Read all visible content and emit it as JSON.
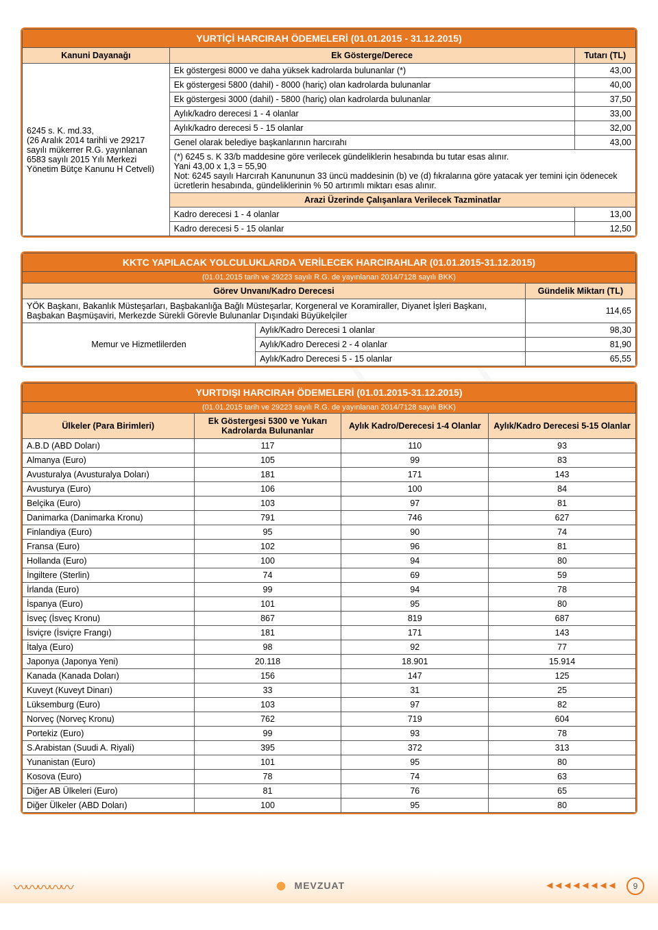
{
  "colors": {
    "accent": "#e87722",
    "header_bg": "#fbd9b5",
    "border": "#555555",
    "text": "#000000",
    "white": "#ffffff"
  },
  "watermark": "VİZYON YAYINLARI",
  "table1": {
    "title": "YURTİÇİ HARCIRAH ÖDEMELERİ (01.01.2015 - 31.12.2015)",
    "col_basis": "Kanuni Dayanağı",
    "col_desc": "Ek Gösterge/Derece",
    "col_amount": "Tutarı (TL)",
    "basis_text": "6245 s. K. md.33,\n(26 Aralık 2014 tarihli ve 29217 sayılı mükerrer R.G. yayınlanan 6583 sayılı 2015 Yılı Merkezi Yönetim Bütçe Kanunu H Cetveli)",
    "rows": [
      {
        "d": "Ek göstergesi 8000 ve daha yüksek  kadrolarda bulunanlar (*)",
        "a": "43,00"
      },
      {
        "d": "Ek göstergesi 5800 (dahil) - 8000 (hariç) olan kadrolarda bulunanlar",
        "a": "40,00"
      },
      {
        "d": "Ek göstergesi 3000 (dahil) - 5800 (hariç) olan kadrolarda bulunanlar",
        "a": "37,50"
      },
      {
        "d": "Aylık/kadro derecesi 1 - 4 olanlar",
        "a": "33,00"
      },
      {
        "d": "Aylık/kadro derecesi 5 - 15 olanlar",
        "a": "32,00"
      },
      {
        "d": "Genel olarak belediye başkanlarının harcırahı",
        "a": "43,00"
      }
    ],
    "note": "(*) 6245 s. K 33/b maddesine göre verilecek gündeliklerin hesabında bu tutar esas alınır.\nYani 43,00 x 1,3 = 55,90\nNot: 6245 sayılı Harcırah Kanununun 33 üncü maddesinin (b) ve (d) fıkralarına göre yatacak yer temini için ödenecek ücretlerin hesabında, gündeliklerinin % 50 artırımlı miktarı esas alınır.",
    "sect": "Arazi Üzerinde Çalışanlara Verilecek Tazminatlar",
    "rows2": [
      {
        "d": "Kadro derecesi 1 - 4 olanlar",
        "a": "13,00"
      },
      {
        "d": "Kadro derecesi 5 - 15 olanlar",
        "a": "12,50"
      }
    ]
  },
  "table2": {
    "title": "KKTC YAPILACAK YOLCULUKLARDA VERİLECEK HARCIRAHLAR  (01.01.2015-31.12.2015)",
    "subtitle": "(01.01.2015 tarih ve 29223 sayılı R.G. de yayınlanan 2014/7128 sayılı BKK)",
    "col1": "Görev Unvanı/Kadro Derecesi",
    "col2": "Gündelik Miktarı (TL)",
    "row1_desc": "YÖK Başkanı, Bakanlık Müsteşarları, Başbakanlığa Bağlı Müsteşarlar, Korgeneral ve Koramiraller, Diyanet İşleri Başkanı, Başbakan Başmüşaviri, Merkezde Sürekli Görevle Bulunanlar Dışındaki Büyükelçiler",
    "row1_amt": "114,65",
    "group_label": "Memur ve Hizmetlilerden",
    "sub_rows": [
      {
        "d": "Aylık/Kadro Derecesi 1 olanlar",
        "a": "98,30"
      },
      {
        "d": "Aylık/Kadro Derecesi 2 - 4 olanlar",
        "a": "81,90"
      },
      {
        "d": "Aylık/Kadro Derecesi 5 - 15 olanlar",
        "a": "65,55"
      }
    ]
  },
  "table3": {
    "title": "YURTDIŞI HARCIRAH ÖDEMELERİ (01.01.2015-31.12.2015)",
    "subtitle": "(01.01.2015 tarih ve 29223 sayılı R.G. de yayınlanan 2014/7128 sayılı BKK)",
    "col1": "Ülkeler (Para Birimleri)",
    "col2": "Ek Göstergesi 5300 ve Yukarı Kadrolarda Bulunanlar",
    "col3": "Aylık Kadro/Derecesi 1-4 Olanlar",
    "col4": "Aylık/Kadro Derecesi 5-15 Olanlar",
    "rows": [
      {
        "c": "A.B.D (ABD Doları)",
        "v1": "117",
        "v2": "110",
        "v3": "93"
      },
      {
        "c": "Almanya (Euro)",
        "v1": "105",
        "v2": "99",
        "v3": "83"
      },
      {
        "c": "Avusturalya (Avusturalya Doları)",
        "v1": "181",
        "v2": "171",
        "v3": "143"
      },
      {
        "c": "Avusturya (Euro)",
        "v1": "106",
        "v2": "100",
        "v3": "84"
      },
      {
        "c": "Belçika (Euro)",
        "v1": "103",
        "v2": "97",
        "v3": "81"
      },
      {
        "c": "Danimarka (Danimarka Kronu)",
        "v1": "791",
        "v2": "746",
        "v3": "627"
      },
      {
        "c": "Finlandiya (Euro)",
        "v1": "95",
        "v2": "90",
        "v3": "74"
      },
      {
        "c": "Fransa (Euro)",
        "v1": "102",
        "v2": "96",
        "v3": "81"
      },
      {
        "c": "Hollanda (Euro)",
        "v1": "100",
        "v2": "94",
        "v3": "80"
      },
      {
        "c": "İngiltere (Sterlin)",
        "v1": "74",
        "v2": "69",
        "v3": "59"
      },
      {
        "c": "İrlanda (Euro)",
        "v1": "99",
        "v2": "94",
        "v3": "78"
      },
      {
        "c": "İspanya (Euro)",
        "v1": "101",
        "v2": "95",
        "v3": "80"
      },
      {
        "c": "İsveç (İsveç Kronu)",
        "v1": "867",
        "v2": "819",
        "v3": "687"
      },
      {
        "c": "İsviçre (İsviçre Frangı)",
        "v1": "181",
        "v2": "171",
        "v3": "143"
      },
      {
        "c": "İtalya (Euro)",
        "v1": "98",
        "v2": "92",
        "v3": "77"
      },
      {
        "c": "Japonya (Japonya Yeni)",
        "v1": "20.118",
        "v2": "18.901",
        "v3": "15.914"
      },
      {
        "c": "Kanada (Kanada Doları)",
        "v1": "156",
        "v2": "147",
        "v3": "125"
      },
      {
        "c": "Kuveyt (Kuveyt Dinarı)",
        "v1": "33",
        "v2": "31",
        "v3": "25"
      },
      {
        "c": "Lüksemburg (Euro)",
        "v1": "103",
        "v2": "97",
        "v3": "82"
      },
      {
        "c": "Norveç (Norveç Kronu)",
        "v1": "762",
        "v2": "719",
        "v3": "604"
      },
      {
        "c": "Portekiz (Euro)",
        "v1": "99",
        "v2": "93",
        "v3": "78"
      },
      {
        "c": "S.Arabistan (Suudi A. Riyali)",
        "v1": "395",
        "v2": "372",
        "v3": "313"
      },
      {
        "c": "Yunanistan (Euro)",
        "v1": "101",
        "v2": "95",
        "v3": "80"
      },
      {
        "c": "Kosova (Euro)",
        "v1": "78",
        "v2": "74",
        "v3": "63"
      },
      {
        "c": "Diğer AB Ülkeleri (Euro)",
        "v1": "81",
        "v2": "76",
        "v3": "65"
      },
      {
        "c": "Diğer Ülkeler (ABD Doları)",
        "v1": "100",
        "v2": "95",
        "v3": "80"
      }
    ]
  },
  "footer": {
    "brand": "MEVZUAT",
    "page": "9"
  }
}
